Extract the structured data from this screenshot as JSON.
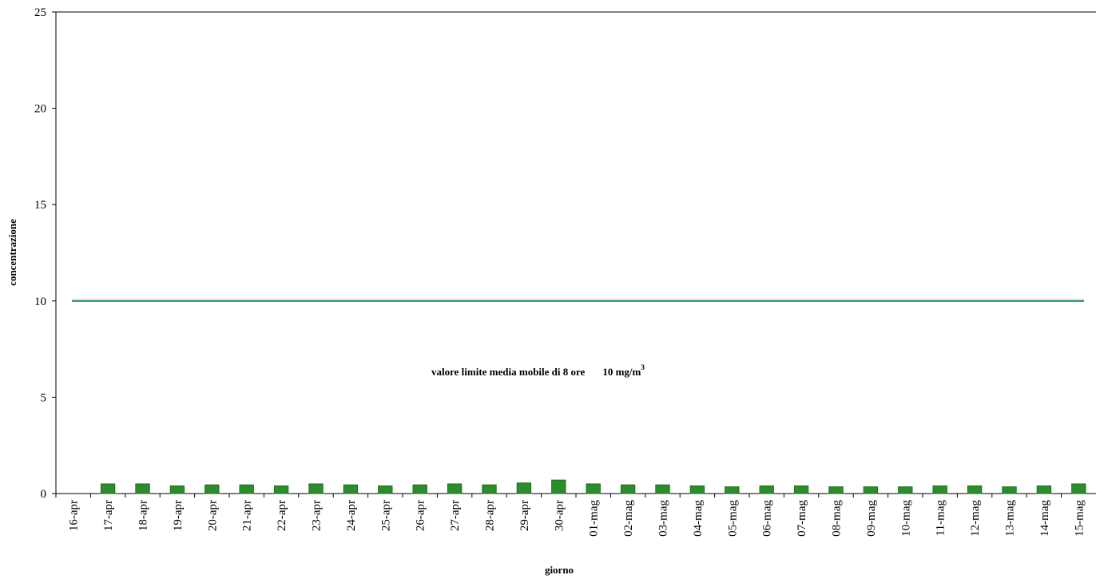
{
  "chart_data": {
    "type": "bar",
    "x_label": "giorno",
    "y_label": "concentrazione",
    "categories": [
      "16-apr",
      "17-apr",
      "18-apr",
      "19-apr",
      "20-apr",
      "21-apr",
      "22-apr",
      "23-apr",
      "24-apr",
      "25-apr",
      "26-apr",
      "27-apr",
      "28-apr",
      "29-apr",
      "30-apr",
      "01-mag",
      "02-mag",
      "03-mag",
      "04-mag",
      "05-mag",
      "06-mag",
      "07-mag",
      "08-mag",
      "09-mag",
      "10-mag",
      "11-mag",
      "12-mag",
      "13-mag",
      "14-mag",
      "15-mag"
    ],
    "values": [
      null,
      0.5,
      0.5,
      0.4,
      0.45,
      0.45,
      0.4,
      0.5,
      0.45,
      0.4,
      0.45,
      0.5,
      0.45,
      0.55,
      0.7,
      0.5,
      0.45,
      0.45,
      0.4,
      0.35,
      0.4,
      0.4,
      0.35,
      0.35,
      0.35,
      0.4,
      0.4,
      0.35,
      0.4,
      0.5
    ],
    "color": "#2e8b2e",
    "ylim": [
      0,
      25
    ],
    "yticks": [
      0,
      5,
      10,
      15,
      20,
      25
    ],
    "limit_line": {
      "value": 10,
      "color": "#3a9a78"
    },
    "annotation": {
      "text": "valore limite media mobile di 8 ore",
      "value_text": "10 mg/m",
      "superscript": "3"
    }
  }
}
